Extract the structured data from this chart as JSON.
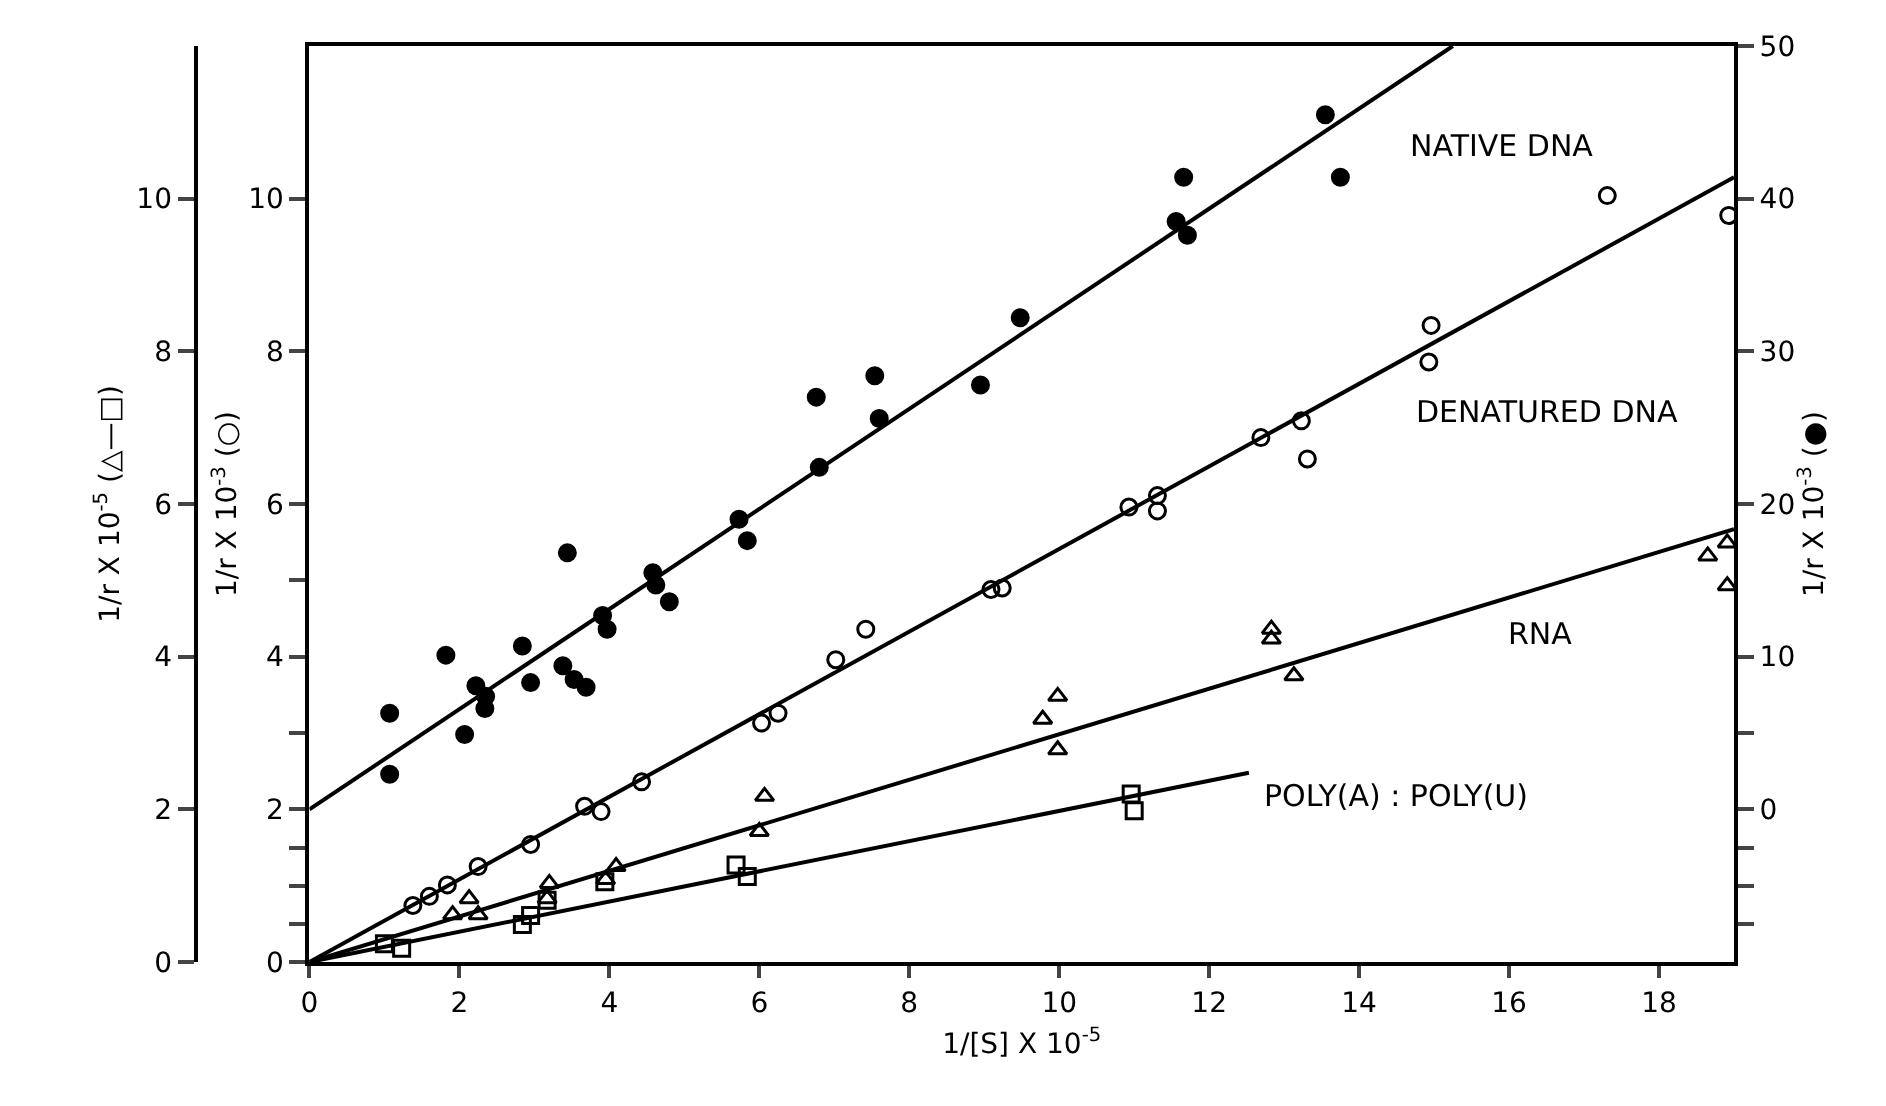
{
  "chart_data": {
    "type": "scatter",
    "xlabel": "1/[S] X 10$^{-5}$",
    "ylabel": "1/r X 10$^{-5}$ (△—□)",
    "y3label": "1/r X 10$^{-3}$ (○)",
    "y2label": "1/r X 10$^{-3}$ (●)",
    "xlim": [
      0,
      19
    ],
    "xticks": [
      0,
      2,
      4,
      6,
      8,
      10,
      12,
      14,
      16,
      18
    ],
    "ylim": [
      0,
      12
    ],
    "yticks": [
      0,
      2,
      4,
      6,
      8,
      10
    ],
    "y3lim": [
      0,
      12
    ],
    "y3ticks": [
      0,
      {
        "value": 0.5,
        "label": null
      },
      {
        "value": 1,
        "label": null
      },
      {
        "value": 1.5,
        "label": null
      },
      2,
      {
        "value": 3,
        "label": null
      },
      4,
      {
        "value": 5,
        "label": null
      },
      6,
      8,
      10
    ],
    "y2lim": [
      -10,
      50
    ],
    "y2ticks": [
      {
        "value": -7.5,
        "label": null
      },
      {
        "value": -5,
        "label": null
      },
      {
        "value": -2.5,
        "label": null
      },
      0,
      {
        "value": 5,
        "label": null
      },
      10,
      20,
      30,
      40,
      50
    ],
    "grid": false,
    "legend": false,
    "series": [
      {
        "axis": "y2",
        "marker": "circle",
        "color": "#000000",
        "x": [
          1.07,
          1.07,
          1.82,
          2.07,
          2.22,
          2.35,
          2.34,
          2.84,
          2.95,
          3.44,
          3.38,
          3.53,
          3.69,
          3.91,
          3.97,
          4.58,
          4.62,
          4.8,
          5.73,
          5.84,
          6.8,
          6.76,
          7.54,
          7.6,
          8.95,
          9.48,
          11.66,
          11.56,
          11.71,
          13.55,
          13.75
        ],
        "values": [
          6.3,
          2.3,
          10.1,
          4.9,
          8.1,
          7.4,
          6.6,
          10.7,
          8.3,
          16.8,
          9.4,
          8.5,
          8,
          12.7,
          11.8,
          15.5,
          14.7,
          13.6,
          19,
          17.6,
          22.4,
          27,
          28.4,
          25.6,
          27.8,
          32.2,
          41.4,
          38.5,
          37.6,
          45.5,
          41.4
        ]
      },
      {
        "type": "line",
        "name": "NATIVE DNA",
        "axis": "y2",
        "marker": "none",
        "color": "#000000",
        "x": [
          0,
          15.25
        ],
        "values": [
          0,
          50
        ]
      },
      {
        "axis": "y3",
        "marker": "circle-open",
        "color": "#000000",
        "x": [
          1.38,
          1.6,
          1.84,
          2.25,
          2.95,
          3.67,
          3.89,
          4.43,
          6.03,
          6.25,
          7.02,
          7.42,
          9.09,
          9.24,
          10.93,
          11.31,
          11.31,
          12.69,
          13.23,
          13.31,
          14.93,
          14.96,
          17.31,
          18.93
        ],
        "values": [
          0.74,
          0.86,
          1.01,
          1.25,
          1.54,
          2.04,
          1.97,
          2.36,
          3.13,
          3.26,
          3.96,
          4.36,
          4.88,
          4.9,
          5.96,
          6.11,
          5.91,
          6.87,
          7.09,
          6.59,
          7.86,
          8.34,
          10.04,
          9.78
        ]
      },
      {
        "type": "line",
        "name": "DENATURED DNA",
        "axis": "y3",
        "marker": "none",
        "color": "#000000",
        "x": [
          0,
          19
        ],
        "values": [
          0,
          10.28
        ]
      },
      {
        "marker": "triangle-open",
        "color": "#000000",
        "x": [
          1.91,
          2.13,
          2.25,
          3.2,
          3.17,
          3.95,
          4.09,
          6.07,
          6,
          9.78,
          9.98,
          9.98,
          12.83,
          12.83,
          13.13,
          18.65,
          18.91,
          18.91
        ],
        "values": [
          0.62,
          0.83,
          0.62,
          1.03,
          0.83,
          1.08,
          1.25,
          2.17,
          1.71,
          3.18,
          3.48,
          2.78,
          4.36,
          4.23,
          3.75,
          5.32,
          5.49,
          4.93
        ]
      },
      {
        "type": "line",
        "name": "RNA",
        "marker": "none",
        "color": "#000000",
        "x": [
          0,
          19
        ],
        "values": [
          0,
          5.67
        ]
      },
      {
        "marker": "square-open",
        "color": "#000000",
        "x": [
          1,
          1.23,
          2.84,
          2.95,
          3.17,
          3.94,
          5.69,
          5.84,
          10.96,
          11
        ],
        "values": [
          0.24,
          0.18,
          0.49,
          0.61,
          0.81,
          1.05,
          1.27,
          1.12,
          2.2,
          1.98
        ]
      },
      {
        "type": "line",
        "name": "POLY(A) : POLY(U)",
        "marker": "none",
        "color": "#000000",
        "x": [
          0,
          12.53
        ],
        "values": [
          0,
          2.48
        ]
      }
    ]
  }
}
